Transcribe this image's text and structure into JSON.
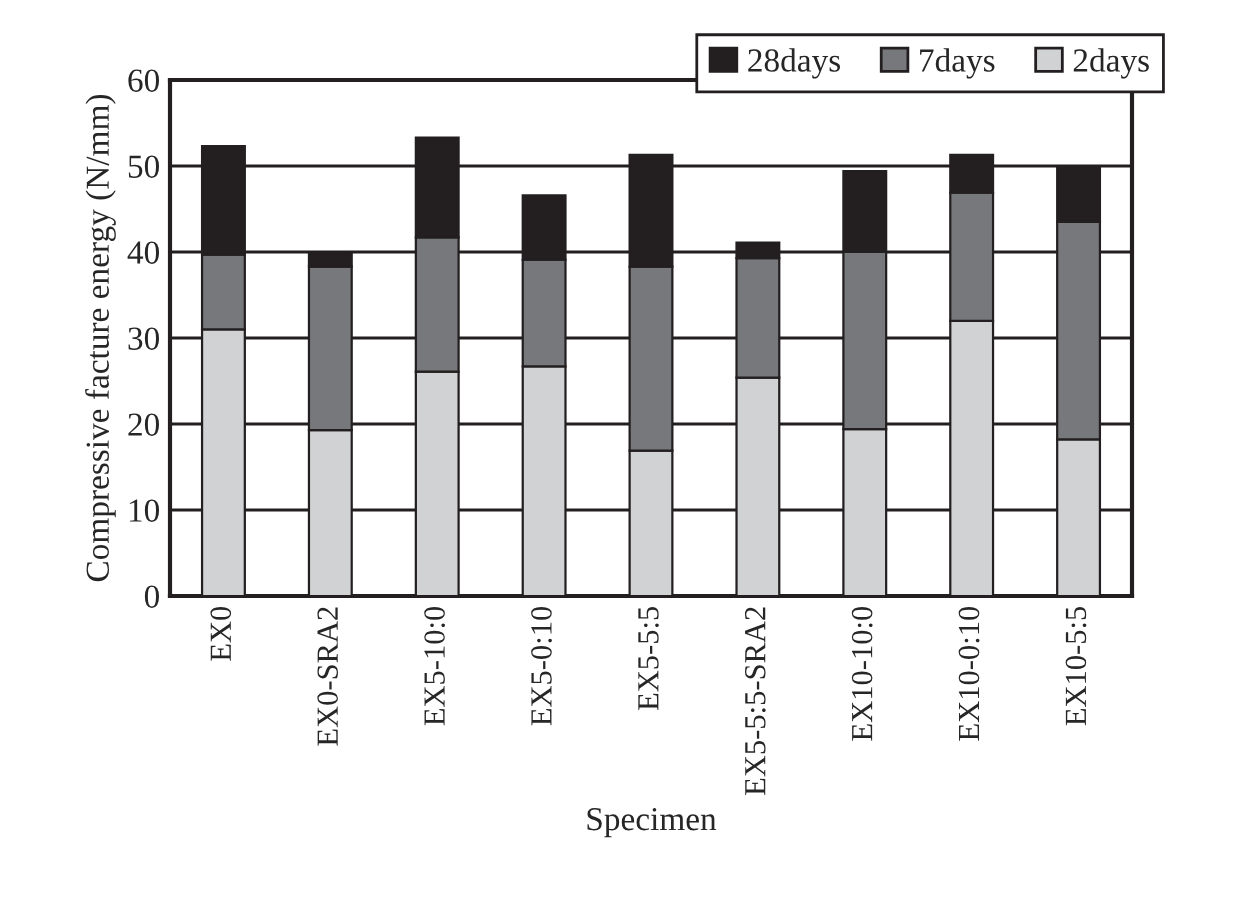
{
  "chart_data": {
    "type": "bar",
    "stacked": true,
    "xlabel": "Specimen",
    "ylabel": "Compressive facture energy (N/mm)",
    "categories": [
      "EX0",
      "EX0-SRA2",
      "EX5-10:0",
      "EX5-0:10",
      "EX5-5:5",
      "EX5-5:5-SRA2",
      "EX10-10:0",
      "EX10-0:10",
      "EX10-5:5"
    ],
    "series": [
      {
        "name": "2days",
        "color": "#d0d2d3",
        "values": [
          31,
          19.3,
          26.1,
          26.7,
          16.9,
          25.4,
          19.4,
          32,
          18.2
        ]
      },
      {
        "name": "7days",
        "color": "#77787b",
        "values": [
          8.7,
          19,
          15.6,
          12.4,
          21.4,
          13.9,
          20.6,
          14.9,
          25.3
        ]
      },
      {
        "name": "28days",
        "color": "#231f20",
        "values": [
          12.6,
          1.5,
          11.6,
          7.5,
          13,
          1.8,
          9.4,
          4.4,
          6.5
        ]
      }
    ],
    "ylim": [
      0,
      60
    ],
    "yticks": [
      0,
      10,
      20,
      30,
      40,
      50,
      60
    ],
    "grid": "y",
    "legend": "top right"
  }
}
